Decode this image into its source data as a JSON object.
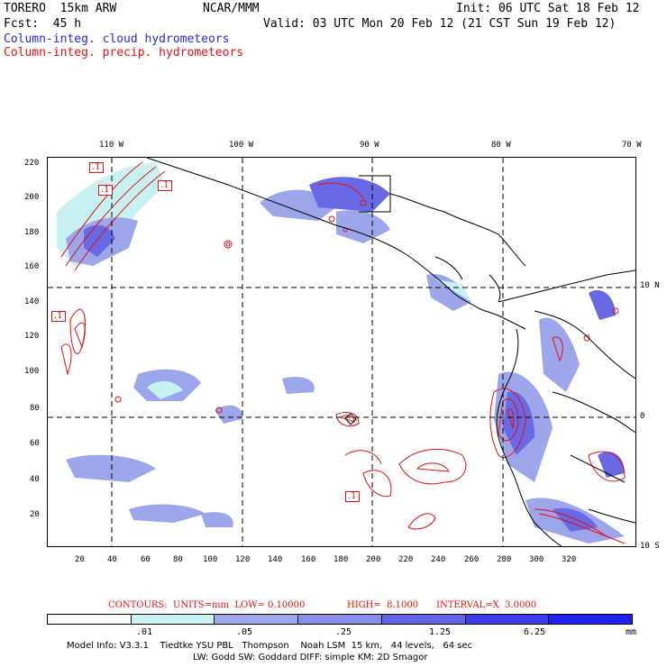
{
  "header": {
    "left1": "TORERO  15km ARW",
    "center1": "NCAR/MMM",
    "right1": "Init: 06 UTC Sat 18 Feb 12",
    "left2": "Fcst:  45 h",
    "right2": "Valid: 03 UTC Mon 20 Feb 12 (21 CST Sun 19 Feb 12)",
    "legend_cloud": "Column-integ. cloud hydrometeors",
    "legend_precip": "Column-integ. precip. hydrometeors"
  },
  "map": {
    "top_longitudes": [
      "110 W",
      "100 W",
      "90 W",
      "80 W",
      "70 W"
    ],
    "right_latitudes": [
      "10 N",
      "0",
      "10 S"
    ],
    "left_ticks": [
      "220",
      "200",
      "180",
      "160",
      "140",
      "120",
      "100",
      "80",
      "60",
      "40",
      "20"
    ],
    "bottom_ticks": [
      "20",
      "40",
      "60",
      "80",
      "100",
      "120",
      "140",
      "160",
      "180",
      "200",
      "220",
      "240",
      "260",
      "280",
      "300",
      "320"
    ],
    "contour_labels": [
      ".1",
      ".1",
      ".1",
      ".1",
      ".1"
    ],
    "colors": {
      "cloud_light": "#bff0f0",
      "cloud_mid": "#8c96e8",
      "cloud_dark": "#5050e0",
      "precip_contour": "#e01010",
      "coastline": "#000000"
    }
  },
  "contours": {
    "units_label": "CONTOURS:  UNITS=mm  LOW= 0.10000",
    "high_label": "HIGH=  8.1000",
    "interval_label": "INTERVAL=X  3.0000"
  },
  "colorbar": {
    "colors": [
      "#ffffff",
      "#c8f4f4",
      "#a0a8ee",
      "#8c8cea",
      "#6464e6",
      "#3c3cea",
      "#2020f0"
    ],
    "labels": [
      ".01",
      ".05",
      ".25",
      "1.25",
      "6.25"
    ],
    "unit": "mm"
  },
  "model_info": {
    "line1": "Model Info: V3.3.1    Tiedtke YSU PBL   Thompson    Noah LSM  15 km,   44 levels,   64 sec",
    "line2": "LW: Godd SW: Goddard DIFF: simple KM: 2D Smagor"
  }
}
